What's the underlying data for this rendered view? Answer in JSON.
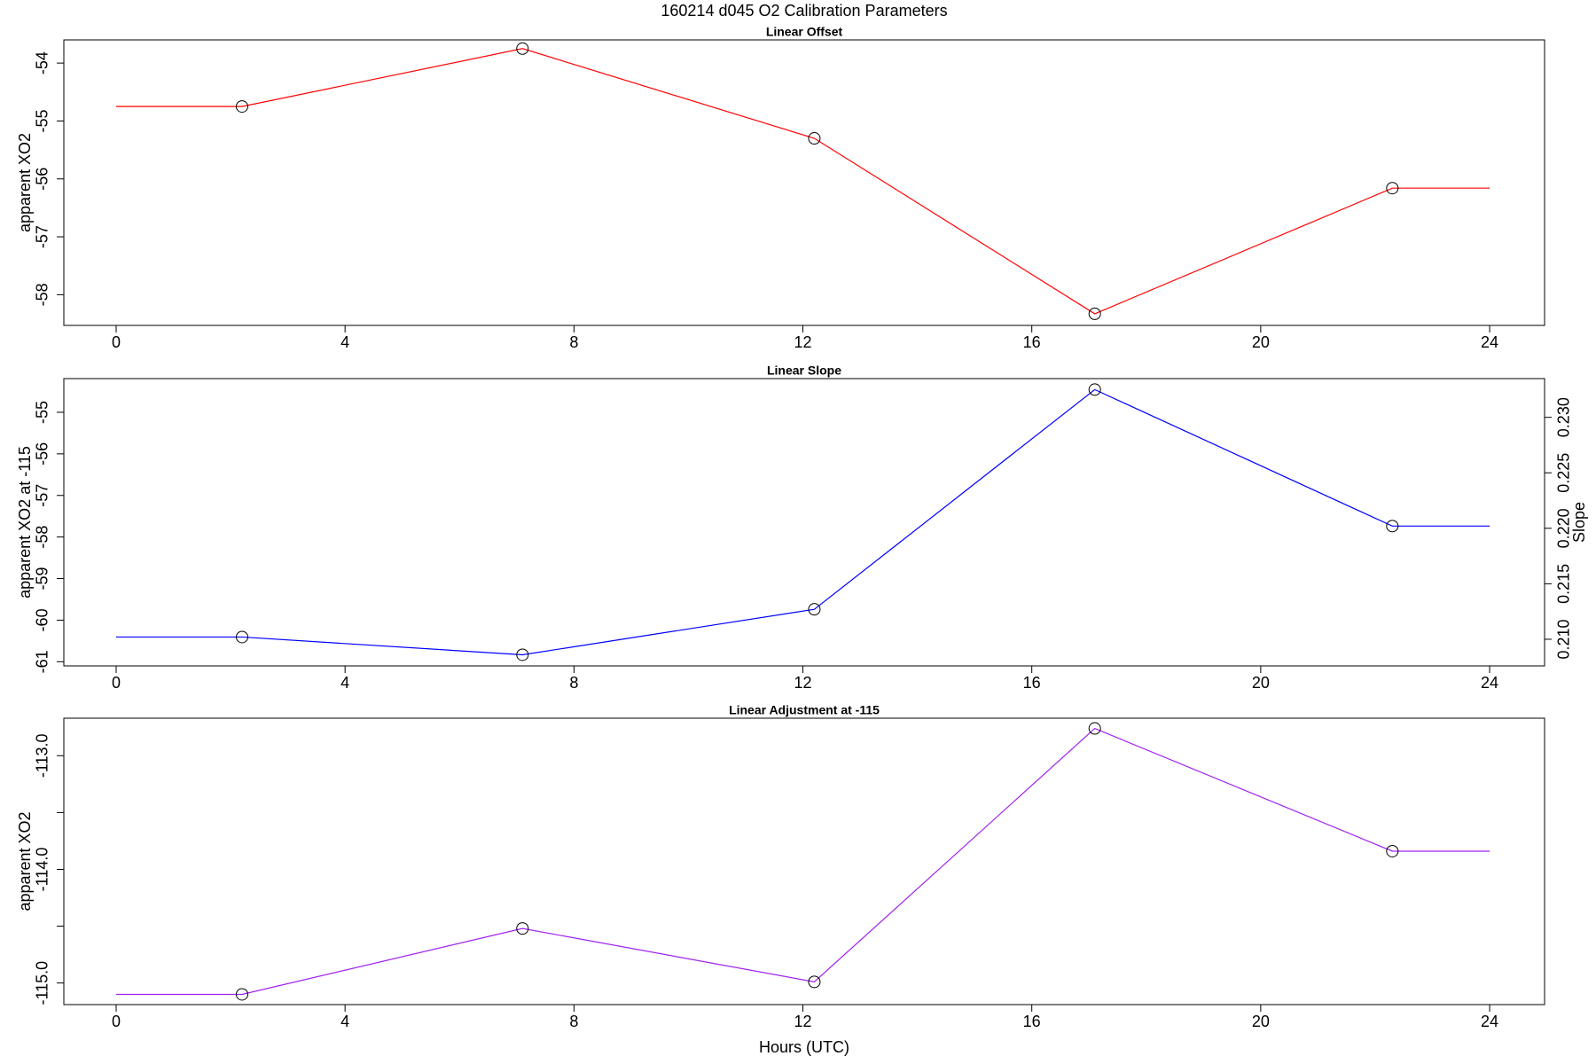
{
  "title": "160214   d045   O2 Calibration Parameters",
  "chart_data": [
    {
      "type": "line",
      "title": "Linear Offset",
      "ylabel": "apparent XO2",
      "x": [
        0,
        2.2,
        7.1,
        12.2,
        17.1,
        22.3,
        24
      ],
      "xlim": [
        -0.914,
        24.96
      ],
      "xticks": [
        0,
        4,
        8,
        12,
        16,
        20,
        24
      ],
      "ylim": [
        -58.53,
        -53.6
      ],
      "yticks": [
        -58,
        -57,
        -56,
        -55,
        -54
      ],
      "series": [
        {
          "color": "#ff0000",
          "values": [
            -54.75,
            -54.75,
            -53.75,
            -55.3,
            -58.33,
            -56.16,
            -56.16
          ],
          "marker_x": [
            2.2,
            7.1,
            12.2,
            17.1,
            22.3
          ],
          "marker_values": [
            -54.75,
            -53.75,
            -55.3,
            -58.33,
            -56.16
          ]
        }
      ]
    },
    {
      "type": "line",
      "title": "Linear Slope",
      "ylabel": "apparent XO2 at -115",
      "y2label": "Slope",
      "x": [
        0,
        2.2,
        7.1,
        12.2,
        17.1,
        22.3,
        24
      ],
      "xlim": [
        -0.914,
        24.96
      ],
      "xticks": [
        0,
        4,
        8,
        12,
        16,
        20,
        24
      ],
      "ylim": [
        -61.1,
        -54.19
      ],
      "yticks": [
        -61,
        -60,
        -59,
        -58,
        -57,
        -56,
        -55
      ],
      "y2lim": [
        0.2076,
        0.23349
      ],
      "y2ticks": [
        {
          "value": 0.21,
          "label": "0.210"
        },
        {
          "value": 0.215,
          "label": "0.215"
        },
        {
          "value": 0.22,
          "label": "0.220"
        },
        {
          "value": 0.225,
          "label": "0.225"
        },
        {
          "value": 0.23,
          "label": "0.230"
        }
      ],
      "series": [
        {
          "color": "#0000ff",
          "axis": "y2",
          "values": [
            0.2102,
            0.2102,
            0.2086,
            0.2127,
            0.2325,
            0.2202,
            0.2202
          ],
          "marker_x": [
            2.2,
            7.1,
            12.2,
            17.1,
            22.3
          ],
          "marker_values": [
            0.2102,
            0.2086,
            0.2127,
            0.2325,
            0.2202
          ]
        }
      ]
    },
    {
      "type": "line",
      "title": "Linear Adjustment at -115",
      "ylabel": "apparent XO2",
      "xlabel": "Hours (UTC)",
      "x": [
        0,
        2.2,
        7.1,
        12.2,
        17.1,
        22.3,
        24
      ],
      "xlim": [
        -0.914,
        24.96
      ],
      "xticks": [
        0,
        4,
        8,
        12,
        16,
        20,
        24
      ],
      "ylim": [
        -115.19,
        -112.67
      ],
      "yticks": [
        {
          "value": -115,
          "label": "-115.0"
        },
        {
          "value": -114.5,
          "label": null
        },
        {
          "value": -114,
          "label": "-114.0"
        },
        {
          "value": -113.5,
          "label": null
        },
        {
          "value": -113,
          "label": "-113.0"
        }
      ],
      "series": [
        {
          "color": "#a020f0",
          "values": [
            -115.1,
            -115.1,
            -114.52,
            -114.99,
            -112.76,
            -113.84,
            -113.84
          ],
          "marker_x": [
            2.2,
            7.1,
            12.2,
            17.1,
            22.3
          ],
          "marker_values": [
            -115.1,
            -114.52,
            -114.99,
            -112.76,
            -113.84
          ]
        }
      ]
    }
  ]
}
